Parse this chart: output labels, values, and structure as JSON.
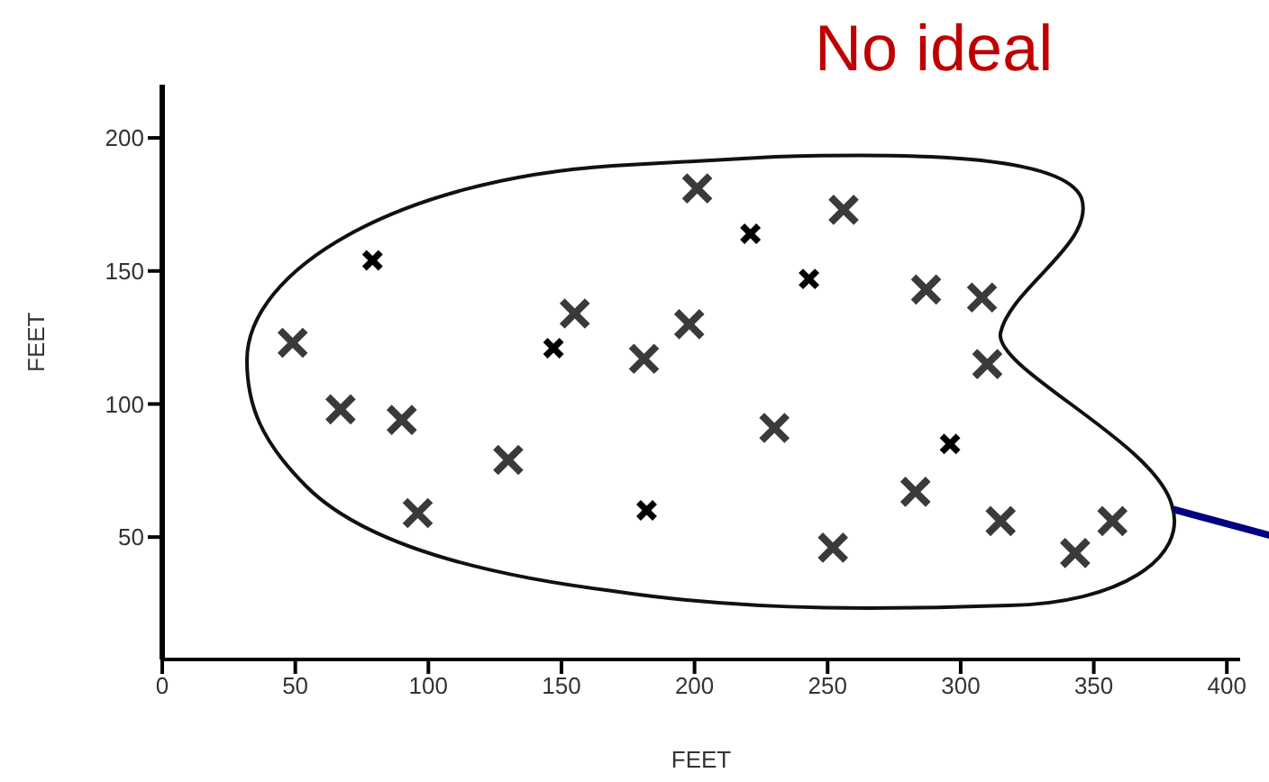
{
  "chart_data": {
    "type": "scatter",
    "title": "No ideal",
    "xlabel": "FEET",
    "ylabel": "FEET",
    "xlim": [
      0,
      405
    ],
    "ylim": [
      4,
      220
    ],
    "xticks": [
      0,
      50,
      100,
      150,
      200,
      250,
      300,
      350,
      400
    ],
    "yticks": [
      50,
      100,
      150,
      200
    ],
    "marker": "cross",
    "grid": false,
    "legend": false,
    "series": [
      {
        "color": "#3a3a3a",
        "x": [
          49,
          67,
          90,
          96,
          130,
          155,
          181,
          198,
          201,
          256,
          287,
          308,
          310,
          230,
          283,
          315,
          357,
          343,
          252
        ],
        "values": [
          123,
          98,
          94,
          59,
          79,
          134,
          117,
          130,
          181,
          173,
          143,
          140,
          115,
          91,
          67,
          56,
          56,
          44,
          46
        ]
      },
      {
        "color": "#000000",
        "x": [
          79,
          147,
          182,
          221,
          243,
          296
        ],
        "values": [
          154,
          121,
          60,
          164,
          147,
          85
        ]
      }
    ]
  }
}
